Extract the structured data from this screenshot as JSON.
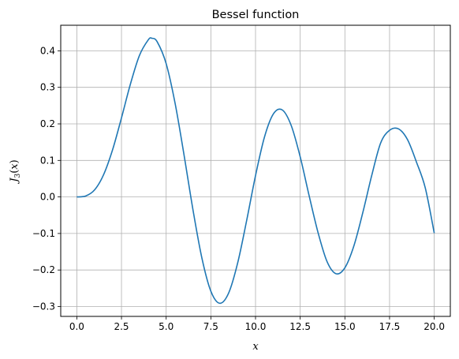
{
  "chart_data": {
    "type": "line",
    "title": "Bessel function",
    "xlabel": "x",
    "ylabel": {
      "func": "J",
      "order": "3",
      "open": "(",
      "var": "x",
      "close": ")"
    },
    "xlim": [
      -0.9,
      20.9
    ],
    "ylim": [
      -0.327,
      0.47
    ],
    "xticks": [
      0,
      2.5,
      5,
      7.5,
      10,
      12.5,
      15,
      17.5,
      20
    ],
    "xtick_labels": [
      "0.0",
      "2.5",
      "5.0",
      "7.5",
      "10.0",
      "12.5",
      "15.0",
      "17.5",
      "20.0"
    ],
    "yticks": [
      -0.3,
      -0.2,
      -0.1,
      0.0,
      0.1,
      0.2,
      0.3,
      0.4
    ],
    "ytick_labels": [
      "−0.3",
      "−0.2",
      "−0.1",
      "0.0",
      "0.1",
      "0.2",
      "0.3",
      "0.4"
    ],
    "grid": true,
    "series": [
      {
        "color": "#1f77b4",
        "x": [
          0,
          0.5,
          1,
          1.5,
          2,
          2.5,
          3,
          3.5,
          4,
          4.2,
          4.5,
          5,
          5.5,
          6,
          6.5,
          7,
          7.5,
          8,
          8.5,
          9,
          9.5,
          10,
          10.5,
          11,
          11.5,
          12,
          12.5,
          13,
          13.5,
          14,
          14.5,
          15,
          15.5,
          16,
          16.5,
          17,
          17.5,
          18,
          18.5,
          19,
          19.5,
          20
        ],
        "y": [
          0,
          0.0026,
          0.0196,
          0.061,
          0.1289,
          0.2166,
          0.3091,
          0.3868,
          0.4302,
          0.4344,
          0.4245,
          0.3648,
          0.2561,
          0.1148,
          -0.0353,
          -0.1676,
          -0.2581,
          -0.2911,
          -0.2626,
          -0.1809,
          -0.0654,
          0.0584,
          0.1638,
          0.2273,
          0.2381,
          0.1951,
          0.1097,
          0.0033,
          -0.0979,
          -0.1768,
          -0.2101,
          -0.194,
          -0.1346,
          -0.0435,
          0.0583,
          0.1476,
          0.1825,
          0.1863,
          0.1573,
          0.0961,
          0.0244,
          -0.0989
        ]
      }
    ]
  }
}
